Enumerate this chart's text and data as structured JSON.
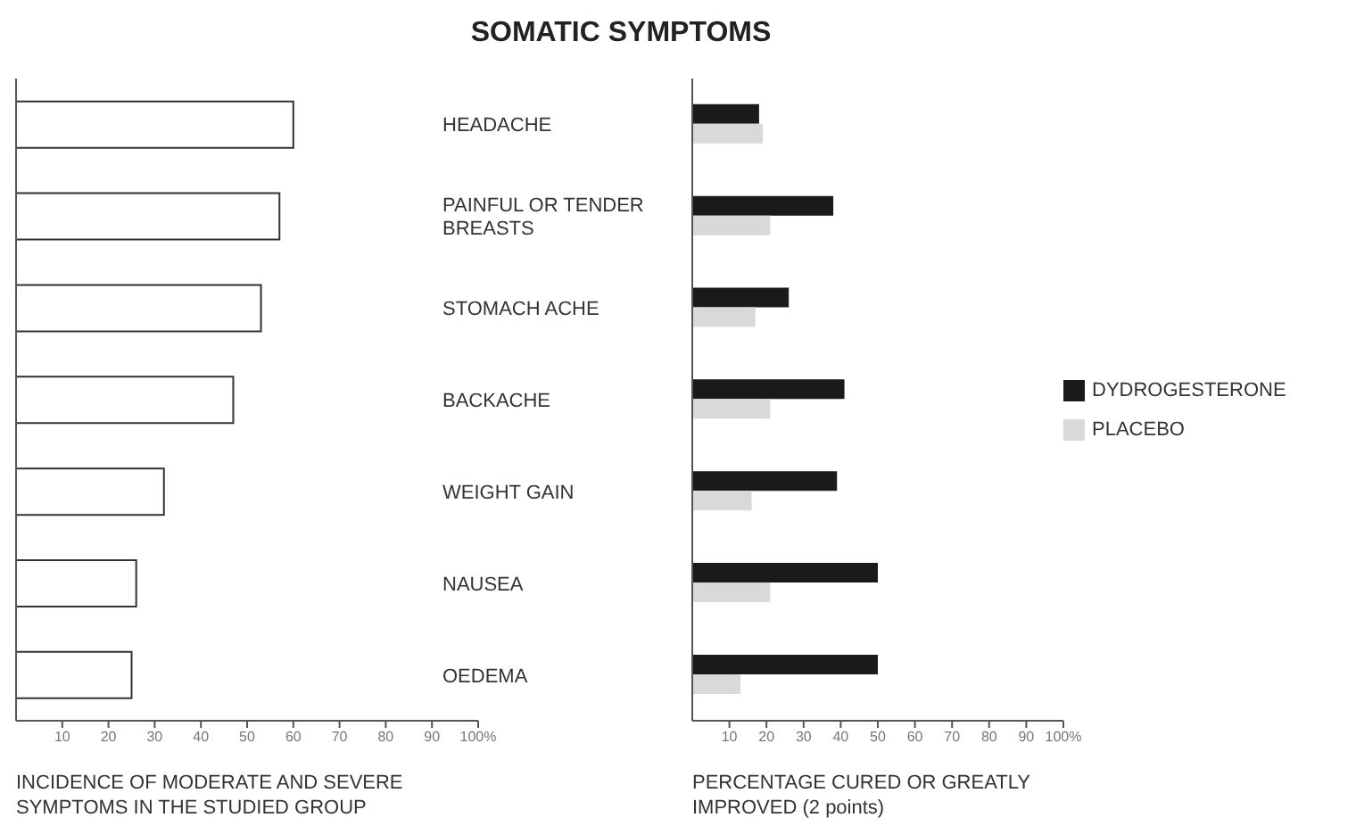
{
  "chart_data": [
    {
      "type": "bar",
      "orientation": "horizontal",
      "title": "SOMATIC SYMPTOMS",
      "categories": [
        null,
        null,
        null,
        null,
        null,
        null,
        null
      ],
      "values": [
        60,
        57,
        53,
        47,
        32,
        26,
        25
      ],
      "color": "#ffffff",
      "xlim": [
        0,
        100
      ],
      "xticks": [
        10,
        20,
        30,
        40,
        50,
        60,
        70,
        80,
        90,
        {
          "value": 100,
          "label": "100%"
        }
      ],
      "xlabel": "INCIDENCE OF MODERATE AND SEVERE SYMPTOMS IN THE STUDIED GROUP"
    },
    {
      "type": "bar",
      "orientation": "horizontal",
      "categories": [
        "HEADACHE",
        "PAINFUL OR TENDER BREASTS",
        "STOMACH ACHE",
        "BACKACHE",
        "WEIGHT GAIN",
        "NAUSEA",
        "OEDEMA"
      ],
      "series": [
        {
          "name": "DYDROGESTERONE",
          "color": "#1a1a1a",
          "values": [
            18,
            38,
            26,
            41,
            39,
            50,
            50
          ]
        },
        {
          "name": "PLACEBO",
          "color": "#d9d9d9",
          "values": [
            19,
            21,
            17,
            21,
            16,
            21,
            13
          ]
        }
      ],
      "xlim": [
        0,
        100
      ],
      "xticks": [
        10,
        20,
        30,
        40,
        50,
        60,
        70,
        80,
        90,
        {
          "value": 100,
          "label": "100%"
        }
      ],
      "xlabel": "PERCENTAGE CURED OR GREATLY IMPROVED (2 points)",
      "legend": "right"
    }
  ]
}
